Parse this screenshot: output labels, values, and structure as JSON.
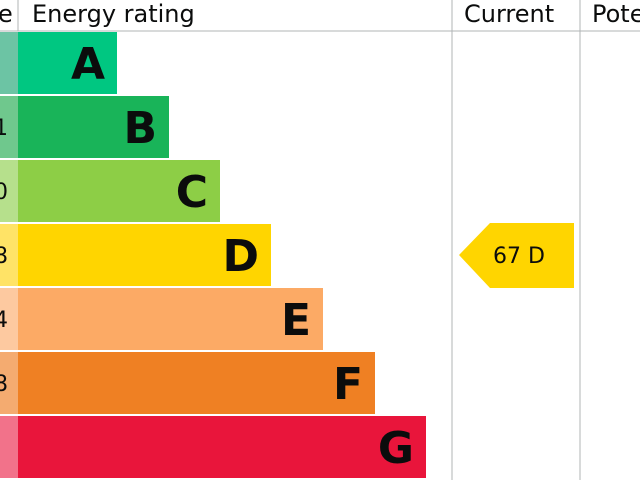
{
  "chart_data": {
    "type": "bar",
    "headers": {
      "score": "e",
      "rating": "Energy rating",
      "current": "Current",
      "potential": "Pote"
    },
    "bands": [
      {
        "letter": "A",
        "score_fragment": "",
        "color": "#00c781",
        "score_color": "#6cc4a4"
      },
      {
        "letter": "B",
        "score_fragment": "1",
        "color": "#19b459",
        "score_color": "#6fc88d"
      },
      {
        "letter": "C",
        "score_fragment": "0",
        "color": "#8dce46",
        "score_color": "#b6e08c"
      },
      {
        "letter": "D",
        "score_fragment": "8",
        "color": "#ffd500",
        "score_color": "#ffe366"
      },
      {
        "letter": "E",
        "score_fragment": "4",
        "color": "#fcaa65",
        "score_color": "#fdc9a0"
      },
      {
        "letter": "F",
        "score_fragment": "8",
        "color": "#ef8023",
        "score_color": "#f4ab70"
      },
      {
        "letter": "G",
        "score_fragment": "",
        "color": "#e9153b",
        "score_color": "#f2728a"
      }
    ],
    "current": {
      "value": 67,
      "band": "D",
      "label": "67  D",
      "color": "#ffd500"
    }
  }
}
